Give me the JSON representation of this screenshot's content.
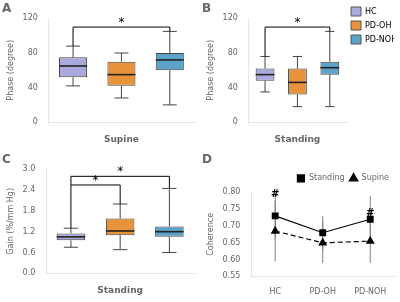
{
  "chart_data": [
    {
      "type": "box",
      "title": "A",
      "xlabel": "Supine",
      "ylabel": "Phase (degree)",
      "categories": [
        "HC",
        "PD-OH",
        "PD-NOH"
      ],
      "colors": [
        "#AAAADD",
        "#E8933A",
        "#5BA3C9"
      ],
      "boxes": [
        {
          "q1": 52,
          "median": 65,
          "q3": 75,
          "whislo": 42,
          "whishi": 88
        },
        {
          "q1": 42,
          "median": 55,
          "q3": 70,
          "whislo": 28,
          "whishi": 80
        },
        {
          "q1": 60,
          "median": 72,
          "q3": 80,
          "whislo": 20,
          "whishi": 105
        }
      ],
      "ylim": [
        0,
        120
      ],
      "yticks": [
        0,
        40,
        80,
        120
      ],
      "grid": false,
      "tick_labels": "y",
      "annotations": [
        {
          "text": "*",
          "from": "HC",
          "to": "PD-NOH",
          "y_from": [
            88,
            105
          ],
          "y": 110
        }
      ]
    },
    {
      "type": "box",
      "title": "B",
      "xlabel": "Standing",
      "ylabel": "Phase (degree)",
      "categories": [
        "HC",
        "PD-OH",
        "PD-NOH"
      ],
      "colors": [
        "#AAAADD",
        "#E8933A",
        "#5BA3C9"
      ],
      "boxes": [
        {
          "q1": 48,
          "median": 55,
          "q3": 62,
          "whislo": 35,
          "whishi": 76
        },
        {
          "q1": 32,
          "median": 46,
          "q3": 62,
          "whislo": 18,
          "whishi": 76
        },
        {
          "q1": 55,
          "median": 63,
          "q3": 70,
          "whislo": 18,
          "whishi": 105
        }
      ],
      "ylim": [
        0,
        120
      ],
      "yticks": [
        0,
        40,
        80,
        120
      ],
      "grid": false,
      "tick_labels": "y",
      "legend": "right",
      "annotations": [
        {
          "text": "*",
          "from": "HC",
          "to": "PD-NOH",
          "y_from": [
            76,
            105
          ],
          "y": 110
        }
      ]
    },
    {
      "type": "box",
      "title": "C",
      "xlabel": "Standing",
      "ylabel": "Gain (%/mm Hg)",
      "categories": [
        "HC",
        "PD-OH",
        "PD-NOH"
      ],
      "colors": [
        "#AAAADD",
        "#E8933A",
        "#5BA3C9"
      ],
      "boxes": [
        {
          "q1": 0.95,
          "median": 1.05,
          "q3": 1.15,
          "whislo": 0.75,
          "whishi": 1.3
        },
        {
          "q1": 1.1,
          "median": 1.22,
          "q3": 1.58,
          "whislo": 0.68,
          "whishi": 2.0
        },
        {
          "q1": 1.05,
          "median": 1.2,
          "q3": 1.35,
          "whislo": 0.6,
          "whishi": 2.45
        }
      ],
      "ylim": [
        0.0,
        3.0
      ],
      "yticks": [
        {
          "value": 0.0,
          "label": "0.0"
        },
        0.6,
        1.2,
        1.8,
        2.4,
        {
          "value": 3.0,
          "label": "3.0"
        }
      ],
      "grid": false,
      "tick_labels": "y",
      "annotations": [
        {
          "text": "*",
          "from": "HC",
          "to": "PD-OH",
          "y_from": [
            1.3,
            2.0
          ],
          "y": 2.55
        },
        {
          "text": "*",
          "from": "HC",
          "to": "PD-NOH",
          "y_from": [
            2.55,
            2.45
          ],
          "y": 2.8
        }
      ]
    },
    {
      "type": "line",
      "title": "D",
      "ylabel": "Coherence",
      "categories": [
        "HC",
        "PD-OH",
        "PD-NOH"
      ],
      "series": [
        {
          "name": "Standing",
          "color": "#000000",
          "marker": "square",
          "line_style": "solid",
          "values": [
            0.73,
            0.68,
            0.72
          ],
          "errors": [
            0.07,
            0.05,
            0.07
          ]
        },
        {
          "name": "Supine",
          "color": "#000000",
          "marker": "triangle",
          "line_style": "dashed",
          "values": [
            0.685,
            0.65,
            0.655
          ],
          "errors": [
            0.09,
            0.06,
            0.065
          ]
        }
      ],
      "ylim": [
        0.55,
        0.8
      ],
      "yticks": [
        0.55,
        {
          "value": 0.6,
          "label": "0.60"
        },
        0.65,
        {
          "value": 0.7,
          "label": "0.70"
        },
        0.75,
        {
          "value": 0.8,
          "label": "0.80"
        }
      ],
      "grid": false,
      "legend": "upper right",
      "annotations": [
        {
          "text": "#",
          "series": "Supine",
          "categories": [
            "HC",
            "PD-NOH"
          ]
        }
      ]
    }
  ]
}
